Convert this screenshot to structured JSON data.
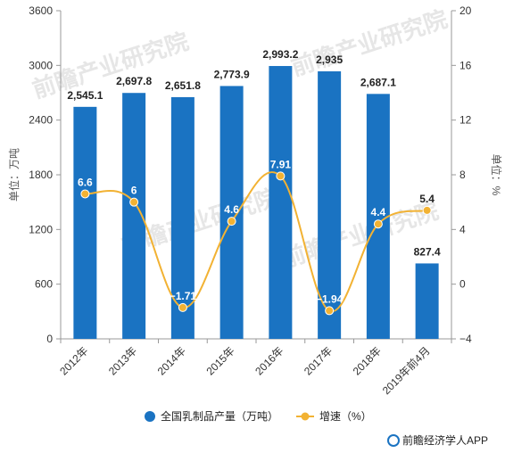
{
  "chart_data": {
    "type": "bar",
    "categories": [
      "2012年",
      "2013年",
      "2014年",
      "2015年",
      "2016年",
      "2017年",
      "2018年",
      "2019年前4月"
    ],
    "series": [
      {
        "name": "全国乳制品产量（万吨）",
        "type": "bar",
        "axis": "left",
        "values": [
          2545.1,
          2697.8,
          2651.8,
          2773.9,
          2993.2,
          2935,
          2687.1,
          827.4
        ],
        "labels": [
          "2,545.1",
          "2,697.8",
          "2,651.8",
          "2,773.9",
          "2,993.2",
          "2,935",
          "2,687.1",
          "827.4"
        ],
        "color": "#1a73c2"
      },
      {
        "name": "增速（%）",
        "type": "line",
        "axis": "right",
        "values": [
          6.6,
          6,
          -1.71,
          4.6,
          7.91,
          -1.94,
          4.4,
          5.4
        ],
        "labels": [
          "6.6",
          "6",
          "−1.71",
          "4.6",
          "7.91",
          "−1.94",
          "4.4",
          "5.4"
        ],
        "color": "#f2b233"
      }
    ],
    "y_left": {
      "label": "单位：万吨",
      "min": 0,
      "max": 3600,
      "ticks": [
        0,
        600,
        1200,
        1800,
        2400,
        3000,
        3600
      ]
    },
    "y_right": {
      "label": "单位：%",
      "min": -4,
      "max": 20,
      "ticks": [
        -4,
        0,
        4,
        8,
        12,
        16,
        20
      ]
    },
    "legend_position": "bottom",
    "grid": false
  },
  "source": "前瞻经济学人APP",
  "watermark": "前瞻产业研究院"
}
